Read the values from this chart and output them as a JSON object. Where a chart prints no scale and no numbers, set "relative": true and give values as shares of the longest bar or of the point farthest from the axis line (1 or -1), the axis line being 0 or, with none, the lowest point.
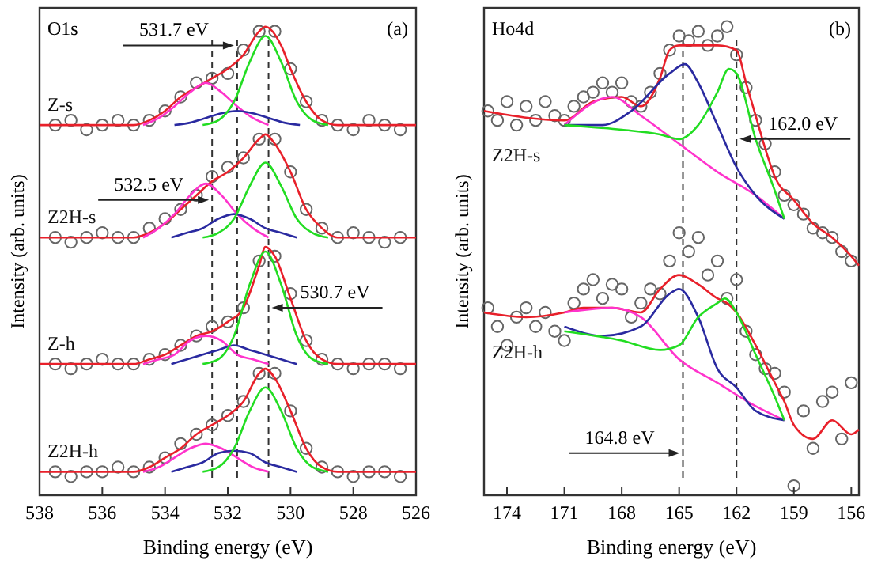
{
  "chart_data": [
    {
      "type": "scatter",
      "title": "O1s",
      "relative": true,
      "xlabel": "Binding energy (eV)",
      "ylabel": "Intensity (arb. units)",
      "xlim": [
        538,
        526
      ],
      "xticks": [
        538,
        536,
        534,
        532,
        530,
        528,
        526
      ],
      "grid": false,
      "legend": false,
      "annotations": [
        "(a)",
        {
          "text": "531.7 eV",
          "x": 531.7,
          "y": 0.96
        },
        {
          "text": "532.5 eV",
          "x": 532.5,
          "y": 0.63
        },
        {
          "text": "530.7 eV",
          "x": 530.7,
          "y": 0.4
        }
      ],
      "ref_lines": [
        {
          "axis": "x",
          "value": 532.5,
          "color": "#333333",
          "line_style": "dashed"
        },
        {
          "axis": "x",
          "value": 531.7,
          "color": "#333333",
          "line_style": "dashed"
        },
        {
          "axis": "x",
          "value": 530.7,
          "color": "#333333",
          "line_style": "dashed"
        }
      ],
      "series": [
        {
          "name": "Z-s",
          "marker": "circle",
          "color": "#666666",
          "x": [
            537.5,
            537,
            536.5,
            536,
            535.5,
            535,
            534.5,
            534,
            533.5,
            533,
            532.5,
            532,
            531.5,
            531,
            530.5,
            530,
            529.5,
            529,
            528.5,
            528,
            527.5,
            527,
            526.5
          ],
          "values": [
            0.79,
            0.8,
            0.78,
            0.79,
            0.8,
            0.79,
            0.8,
            0.82,
            0.85,
            0.88,
            0.89,
            0.9,
            0.95,
            0.99,
            0.99,
            0.91,
            0.84,
            0.8,
            0.79,
            0.78,
            0.8,
            0.79,
            0.78
          ]
        },
        {
          "type": "line",
          "color": "#e8202a",
          "x": [
            538,
            536,
            535,
            534.5,
            534,
            533.5,
            533,
            532.5,
            532,
            531.5,
            531,
            530.8,
            530.3,
            530,
            529.5,
            529,
            528.5,
            526
          ],
          "values": [
            0.79,
            0.79,
            0.79,
            0.8,
            0.82,
            0.85,
            0.87,
            0.89,
            0.91,
            0.94,
            0.99,
            1.0,
            0.96,
            0.91,
            0.84,
            0.8,
            0.79,
            0.79
          ]
        },
        {
          "type": "line",
          "color": "#ff33cc",
          "x": [
            534.7,
            534.2,
            533.7,
            533.2,
            532.7,
            532.2,
            531.7,
            531.2,
            530.7
          ],
          "values": [
            0.79,
            0.805,
            0.83,
            0.86,
            0.88,
            0.86,
            0.83,
            0.805,
            0.79
          ]
        },
        {
          "type": "line",
          "color": "#2a2aa0",
          "x": [
            533.7,
            533.2,
            532.7,
            532.2,
            531.7,
            531.2,
            530.7,
            530.2,
            529.7
          ],
          "values": [
            0.79,
            0.795,
            0.805,
            0.815,
            0.82,
            0.815,
            0.805,
            0.795,
            0.79
          ]
        },
        {
          "type": "line",
          "color": "#22dd22",
          "x": [
            532.8,
            532.3,
            531.8,
            531.3,
            530.8,
            530.3,
            529.8,
            529.3,
            528.8
          ],
          "values": [
            0.79,
            0.8,
            0.84,
            0.925,
            0.98,
            0.925,
            0.84,
            0.8,
            0.79
          ]
        },
        {
          "name": "Z2H-s",
          "marker": "circle",
          "color": "#666666",
          "x": [
            537.5,
            537,
            536.5,
            536,
            535.5,
            535,
            534.5,
            534,
            533.5,
            533,
            532.5,
            532,
            531.5,
            531,
            530.5,
            530,
            529.5,
            529,
            528.5,
            528,
            527.5,
            527,
            526.5
          ],
          "values": [
            0.55,
            0.54,
            0.55,
            0.56,
            0.55,
            0.55,
            0.57,
            0.59,
            0.61,
            0.64,
            0.68,
            0.7,
            0.72,
            0.76,
            0.76,
            0.69,
            0.61,
            0.57,
            0.55,
            0.56,
            0.55,
            0.54,
            0.55
          ]
        },
        {
          "type": "line",
          "color": "#e8202a",
          "x": [
            538,
            535,
            534.5,
            534,
            533.5,
            533,
            532.5,
            532,
            531.5,
            531,
            530.8,
            530.5,
            530,
            529.5,
            529,
            528.5,
            526
          ],
          "values": [
            0.55,
            0.55,
            0.56,
            0.58,
            0.61,
            0.64,
            0.67,
            0.69,
            0.72,
            0.76,
            0.77,
            0.75,
            0.69,
            0.61,
            0.57,
            0.55,
            0.55
          ]
        },
        {
          "type": "line",
          "color": "#ff33cc",
          "x": [
            534.7,
            534.2,
            533.7,
            533.2,
            532.7,
            532.2,
            531.7,
            531.2,
            530.7
          ],
          "values": [
            0.55,
            0.57,
            0.6,
            0.64,
            0.665,
            0.64,
            0.6,
            0.57,
            0.55
          ]
        },
        {
          "type": "line",
          "color": "#2a2aa0",
          "x": [
            533.8,
            533.3,
            532.8,
            532.3,
            531.8,
            531.3,
            530.8,
            530.3,
            529.8
          ],
          "values": [
            0.55,
            0.56,
            0.57,
            0.59,
            0.6,
            0.59,
            0.57,
            0.56,
            0.55
          ]
        },
        {
          "type": "line",
          "color": "#22dd22",
          "x": [
            532.8,
            532.3,
            531.8,
            531.3,
            530.8,
            530.3,
            529.8,
            529.3,
            528.8
          ],
          "values": [
            0.55,
            0.56,
            0.59,
            0.66,
            0.71,
            0.66,
            0.59,
            0.56,
            0.55
          ]
        },
        {
          "name": "Z-h",
          "marker": "circle",
          "color": "#666666",
          "x": [
            537.5,
            537,
            536.5,
            536,
            535.5,
            535,
            534.5,
            534,
            533.5,
            533,
            532.5,
            532,
            531.5,
            531,
            530.5,
            530,
            529.5,
            529,
            528.5,
            528,
            527.5,
            527,
            526.5
          ],
          "values": [
            0.28,
            0.27,
            0.28,
            0.29,
            0.28,
            0.28,
            0.29,
            0.3,
            0.32,
            0.34,
            0.36,
            0.37,
            0.4,
            0.5,
            0.51,
            0.43,
            0.33,
            0.29,
            0.28,
            0.27,
            0.28,
            0.28,
            0.27
          ]
        },
        {
          "type": "line",
          "color": "#e8202a",
          "x": [
            538,
            535,
            534.5,
            534,
            533.5,
            533,
            532.5,
            532,
            531.5,
            531,
            530.8,
            530.5,
            530,
            529.5,
            529,
            528.5,
            526
          ],
          "values": [
            0.28,
            0.28,
            0.29,
            0.3,
            0.32,
            0.34,
            0.35,
            0.37,
            0.4,
            0.49,
            0.53,
            0.51,
            0.42,
            0.33,
            0.29,
            0.28,
            0.28
          ]
        },
        {
          "type": "line",
          "color": "#ff33cc",
          "x": [
            534.7,
            534.2,
            533.7,
            533.2,
            532.7,
            532.2,
            531.7,
            531.2,
            530.7
          ],
          "values": [
            0.28,
            0.29,
            0.3,
            0.33,
            0.34,
            0.33,
            0.3,
            0.29,
            0.28
          ]
        },
        {
          "type": "line",
          "color": "#2a2aa0",
          "x": [
            533.8,
            533.3,
            532.8,
            532.3,
            531.8,
            531.3,
            530.8,
            530.3,
            529.8
          ],
          "values": [
            0.28,
            0.29,
            0.3,
            0.31,
            0.32,
            0.31,
            0.3,
            0.29,
            0.28
          ]
        },
        {
          "type": "line",
          "color": "#22dd22",
          "x": [
            532.8,
            532.3,
            531.8,
            531.3,
            530.8,
            530.3,
            529.8,
            529.3,
            528.8
          ],
          "values": [
            0.28,
            0.29,
            0.34,
            0.45,
            0.52,
            0.45,
            0.34,
            0.29,
            0.28
          ]
        },
        {
          "name": "Z2H-h",
          "marker": "circle",
          "color": "#666666",
          "x": [
            537.5,
            537,
            536.5,
            536,
            535.5,
            535,
            534.5,
            534,
            533.5,
            533,
            532.5,
            532,
            531.5,
            531,
            530.5,
            530,
            529.5,
            529,
            528.5,
            528,
            527.5,
            527,
            526.5
          ],
          "values": [
            0.05,
            0.04,
            0.05,
            0.05,
            0.06,
            0.05,
            0.06,
            0.08,
            0.11,
            0.13,
            0.15,
            0.17,
            0.2,
            0.26,
            0.26,
            0.18,
            0.1,
            0.06,
            0.05,
            0.04,
            0.05,
            0.05,
            0.04
          ]
        },
        {
          "type": "line",
          "color": "#e8202a",
          "x": [
            538,
            535,
            534.5,
            534,
            533.5,
            533,
            532.5,
            532,
            531.5,
            531,
            530.8,
            530.5,
            530,
            529.5,
            529,
            528.5,
            526
          ],
          "values": [
            0.05,
            0.05,
            0.06,
            0.08,
            0.1,
            0.13,
            0.15,
            0.17,
            0.2,
            0.26,
            0.27,
            0.25,
            0.18,
            0.1,
            0.06,
            0.05,
            0.05
          ]
        },
        {
          "type": "line",
          "color": "#ff33cc",
          "x": [
            534.7,
            534.2,
            533.7,
            533.2,
            532.7,
            532.2,
            531.7,
            531.2,
            530.7
          ],
          "values": [
            0.05,
            0.06,
            0.08,
            0.1,
            0.11,
            0.1,
            0.08,
            0.06,
            0.05
          ]
        },
        {
          "type": "line",
          "color": "#2a2aa0",
          "x": [
            533.8,
            533.3,
            532.8,
            532.3,
            531.8,
            531.3,
            530.8,
            530.3,
            529.8
          ],
          "values": [
            0.05,
            0.06,
            0.07,
            0.09,
            0.095,
            0.09,
            0.07,
            0.06,
            0.05
          ]
        },
        {
          "type": "line",
          "color": "#22dd22",
          "x": [
            532.8,
            532.3,
            531.8,
            531.3,
            530.8,
            530.3,
            529.8,
            529.3,
            528.8
          ],
          "values": [
            0.05,
            0.06,
            0.1,
            0.18,
            0.23,
            0.18,
            0.1,
            0.06,
            0.05
          ]
        }
      ]
    },
    {
      "type": "scatter",
      "title": "Ho4d",
      "relative": true,
      "xlabel": "Binding energy (eV)",
      "ylabel": "Intensity (arb. units)",
      "xlim": [
        175.2,
        155.6
      ],
      "xticks": [
        174,
        171,
        168,
        165,
        162,
        159,
        156
      ],
      "grid": false,
      "legend": false,
      "annotations": [
        "(b)",
        {
          "text": "162.0 eV",
          "x": 162.0,
          "y": 0.76
        },
        {
          "text": "164.8 eV",
          "x": 164.8,
          "y": 0.09
        }
      ],
      "ref_lines": [
        {
          "axis": "x",
          "value": 164.8,
          "color": "#333333",
          "line_style": "dashed"
        },
        {
          "axis": "x",
          "value": 162.0,
          "color": "#333333",
          "line_style": "dashed"
        }
      ],
      "series": [
        {
          "name": "Z2H-s",
          "marker": "circle",
          "color": "#666666",
          "x": [
            175,
            174.5,
            174,
            173.5,
            173,
            172.5,
            172,
            171.5,
            171,
            170.5,
            170,
            169.5,
            169,
            168.5,
            168,
            167.5,
            167,
            166.5,
            166,
            165.5,
            165,
            164.5,
            164,
            163.5,
            163,
            162.5,
            162,
            161.5,
            161,
            160.5,
            160,
            159.5,
            159,
            158.5,
            158,
            157.5,
            157,
            156.5,
            156
          ],
          "values": [
            0.82,
            0.8,
            0.84,
            0.79,
            0.83,
            0.8,
            0.84,
            0.81,
            0.8,
            0.83,
            0.85,
            0.86,
            0.88,
            0.86,
            0.88,
            0.84,
            0.83,
            0.86,
            0.9,
            0.95,
            0.98,
            0.97,
            0.99,
            0.96,
            0.98,
            1.0,
            0.94,
            0.87,
            0.8,
            0.75,
            0.69,
            0.64,
            0.62,
            0.6,
            0.57,
            0.56,
            0.55,
            0.52,
            0.5
          ]
        },
        {
          "type": "line",
          "color": "#e8202a",
          "x": [
            175.2,
            171,
            169.5,
            168,
            167,
            166,
            165.5,
            165,
            163,
            162,
            161.5,
            161,
            160.5,
            160,
            159,
            158,
            157,
            156,
            155.6
          ],
          "values": [
            0.82,
            0.8,
            0.84,
            0.85,
            0.83,
            0.89,
            0.95,
            0.96,
            0.96,
            0.95,
            0.88,
            0.81,
            0.74,
            0.68,
            0.63,
            0.58,
            0.55,
            0.51,
            0.49
          ]
        },
        {
          "type": "line",
          "color": "#ff33cc",
          "x": [
            171,
            168.5,
            167,
            165,
            163,
            161,
            159.5
          ],
          "values": [
            0.79,
            0.85,
            0.81,
            0.75,
            0.69,
            0.64,
            0.59
          ]
        },
        {
          "type": "line",
          "color": "#2a2aa0",
          "x": [
            171,
            169,
            167.5,
            165.5,
            164.7,
            164,
            163,
            162,
            161,
            159.5
          ],
          "values": [
            0.79,
            0.79,
            0.82,
            0.9,
            0.92,
            0.88,
            0.79,
            0.7,
            0.64,
            0.59
          ]
        },
        {
          "type": "line",
          "color": "#22dd22",
          "x": [
            171,
            168,
            166,
            165,
            164,
            163,
            162.4,
            162,
            161,
            160,
            159.5
          ],
          "values": [
            0.79,
            0.78,
            0.77,
            0.76,
            0.79,
            0.86,
            0.91,
            0.9,
            0.76,
            0.65,
            0.59
          ]
        },
        {
          "name": "Z2H-h",
          "marker": "circle",
          "color": "#666666",
          "x": [
            175,
            174.5,
            174,
            173.5,
            173,
            172.5,
            172,
            171.5,
            171,
            170.5,
            170,
            169.5,
            169,
            168.5,
            168,
            167.5,
            167,
            166.5,
            166,
            165.5,
            165,
            164.5,
            164,
            163.5,
            163,
            162.5,
            162,
            161.5,
            161,
            160.5,
            160,
            159.5,
            159,
            158.5,
            158,
            157.5,
            157,
            156.5,
            156
          ],
          "values": [
            0.4,
            0.36,
            0.32,
            0.38,
            0.4,
            0.36,
            0.39,
            0.35,
            0.33,
            0.41,
            0.44,
            0.46,
            0.42,
            0.45,
            0.44,
            0.38,
            0.41,
            0.44,
            0.43,
            0.5,
            0.56,
            0.52,
            0.55,
            0.47,
            0.5,
            0.42,
            0.46,
            0.35,
            0.3,
            0.27,
            0.26,
            0.22,
            0.02,
            0.18,
            0.1,
            0.2,
            0.22,
            0.12,
            0.24
          ]
        },
        {
          "type": "line",
          "color": "#e8202a",
          "x": [
            175.2,
            173,
            171,
            170,
            168.5,
            167,
            166,
            165,
            164,
            163,
            162.5,
            162,
            161,
            160,
            159.5,
            159,
            158,
            157,
            156,
            155.6
          ],
          "values": [
            0.39,
            0.38,
            0.39,
            0.4,
            0.4,
            0.39,
            0.44,
            0.47,
            0.45,
            0.42,
            0.41,
            0.39,
            0.32,
            0.24,
            0.2,
            0.15,
            0.12,
            0.16,
            0.13,
            0.14
          ]
        },
        {
          "type": "line",
          "color": "#ff33cc",
          "x": [
            171,
            168.5,
            167,
            165,
            163,
            161,
            159.5
          ],
          "values": [
            0.39,
            0.4,
            0.38,
            0.29,
            0.24,
            0.19,
            0.16
          ]
        },
        {
          "type": "line",
          "color": "#2a2aa0",
          "x": [
            171,
            169,
            167,
            165.5,
            165,
            164,
            163,
            162,
            161,
            159.5
          ],
          "values": [
            0.36,
            0.34,
            0.36,
            0.43,
            0.44,
            0.38,
            0.27,
            0.23,
            0.18,
            0.16
          ]
        },
        {
          "type": "line",
          "color": "#22dd22",
          "x": [
            171,
            168,
            166,
            165,
            164,
            163,
            162.6,
            162,
            161,
            160,
            159.5
          ],
          "values": [
            0.35,
            0.33,
            0.31,
            0.32,
            0.38,
            0.41,
            0.42,
            0.39,
            0.3,
            0.21,
            0.16
          ]
        }
      ]
    }
  ]
}
